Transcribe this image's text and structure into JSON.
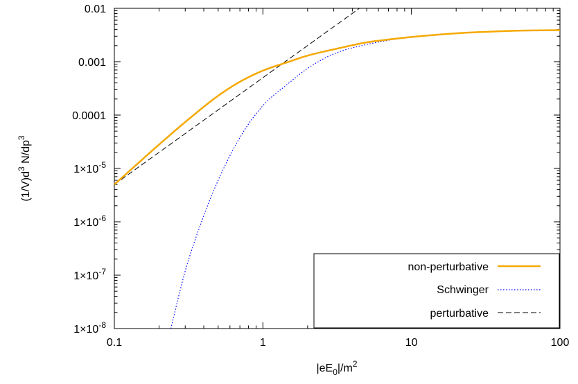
{
  "chart_data": {
    "type": "line",
    "xlabel": {
      "base": "|eE",
      "sub": "0",
      "mid": "|/m",
      "sup": "2"
    },
    "ylabel": {
      "p1": "(1/V)d",
      "sup1": "3",
      "p2": " N/dp",
      "sup2": "3"
    },
    "x_scale": "log",
    "y_scale": "log",
    "xlim": [
      0.1,
      100
    ],
    "ylim": [
      1e-08,
      0.01
    ],
    "grid": false,
    "legend_position": "bottom-right",
    "x_ticks": [
      {
        "value": 0.1,
        "label": "0.1"
      },
      {
        "value": 1,
        "label": "1"
      },
      {
        "value": 10,
        "label": "10"
      },
      {
        "value": 100,
        "label": "100"
      }
    ],
    "y_ticks": [
      {
        "value": 1e-08,
        "text": "",
        "mant": "1×10",
        "exp": "-8"
      },
      {
        "value": 1e-07,
        "text": "",
        "mant": "1×10",
        "exp": "-7"
      },
      {
        "value": 1e-06,
        "text": "",
        "mant": "1×10",
        "exp": "-6"
      },
      {
        "value": 1e-05,
        "text": "",
        "mant": "1×10",
        "exp": "-5"
      },
      {
        "value": 0.0001,
        "text": "0.0001",
        "mant": "",
        "exp": ""
      },
      {
        "value": 0.001,
        "text": "0.001",
        "mant": "",
        "exp": ""
      },
      {
        "value": 0.01,
        "text": "0.01",
        "mant": "",
        "exp": ""
      }
    ],
    "series": [
      {
        "name": "non-perturbative",
        "color": "#f5a800",
        "style": "solid",
        "x": [
          0.1,
          0.2,
          0.3,
          0.5,
          0.7,
          1,
          1.5,
          2,
          3,
          5,
          7,
          10,
          20,
          30,
          50,
          100
        ],
        "y": [
          5e-06,
          2.8e-05,
          7.4e-05,
          0.00023,
          0.00042,
          0.00068,
          0.001,
          0.0013,
          0.0017,
          0.0023,
          0.0026,
          0.0029,
          0.0034,
          0.0036,
          0.0038,
          0.0039
        ]
      },
      {
        "name": "Schwinger",
        "color": "#0000ff",
        "style": "dotted",
        "x": [
          0.24,
          0.3,
          0.4,
          0.5,
          0.7,
          1,
          1.5,
          2,
          3,
          5,
          10,
          20,
          50,
          100
        ],
        "y": [
          1e-08,
          1.2e-07,
          1.3e-06,
          6e-06,
          3.8e-05,
          0.00015,
          0.0004,
          0.00075,
          0.0014,
          0.0021,
          0.0029,
          0.0034,
          0.0038,
          0.0039
        ]
      },
      {
        "name": "perturbative",
        "color": "#000000",
        "style": "dashed",
        "x": [
          0.1,
          4.55
        ],
        "y": [
          5e-06,
          0.0104
        ]
      }
    ]
  }
}
